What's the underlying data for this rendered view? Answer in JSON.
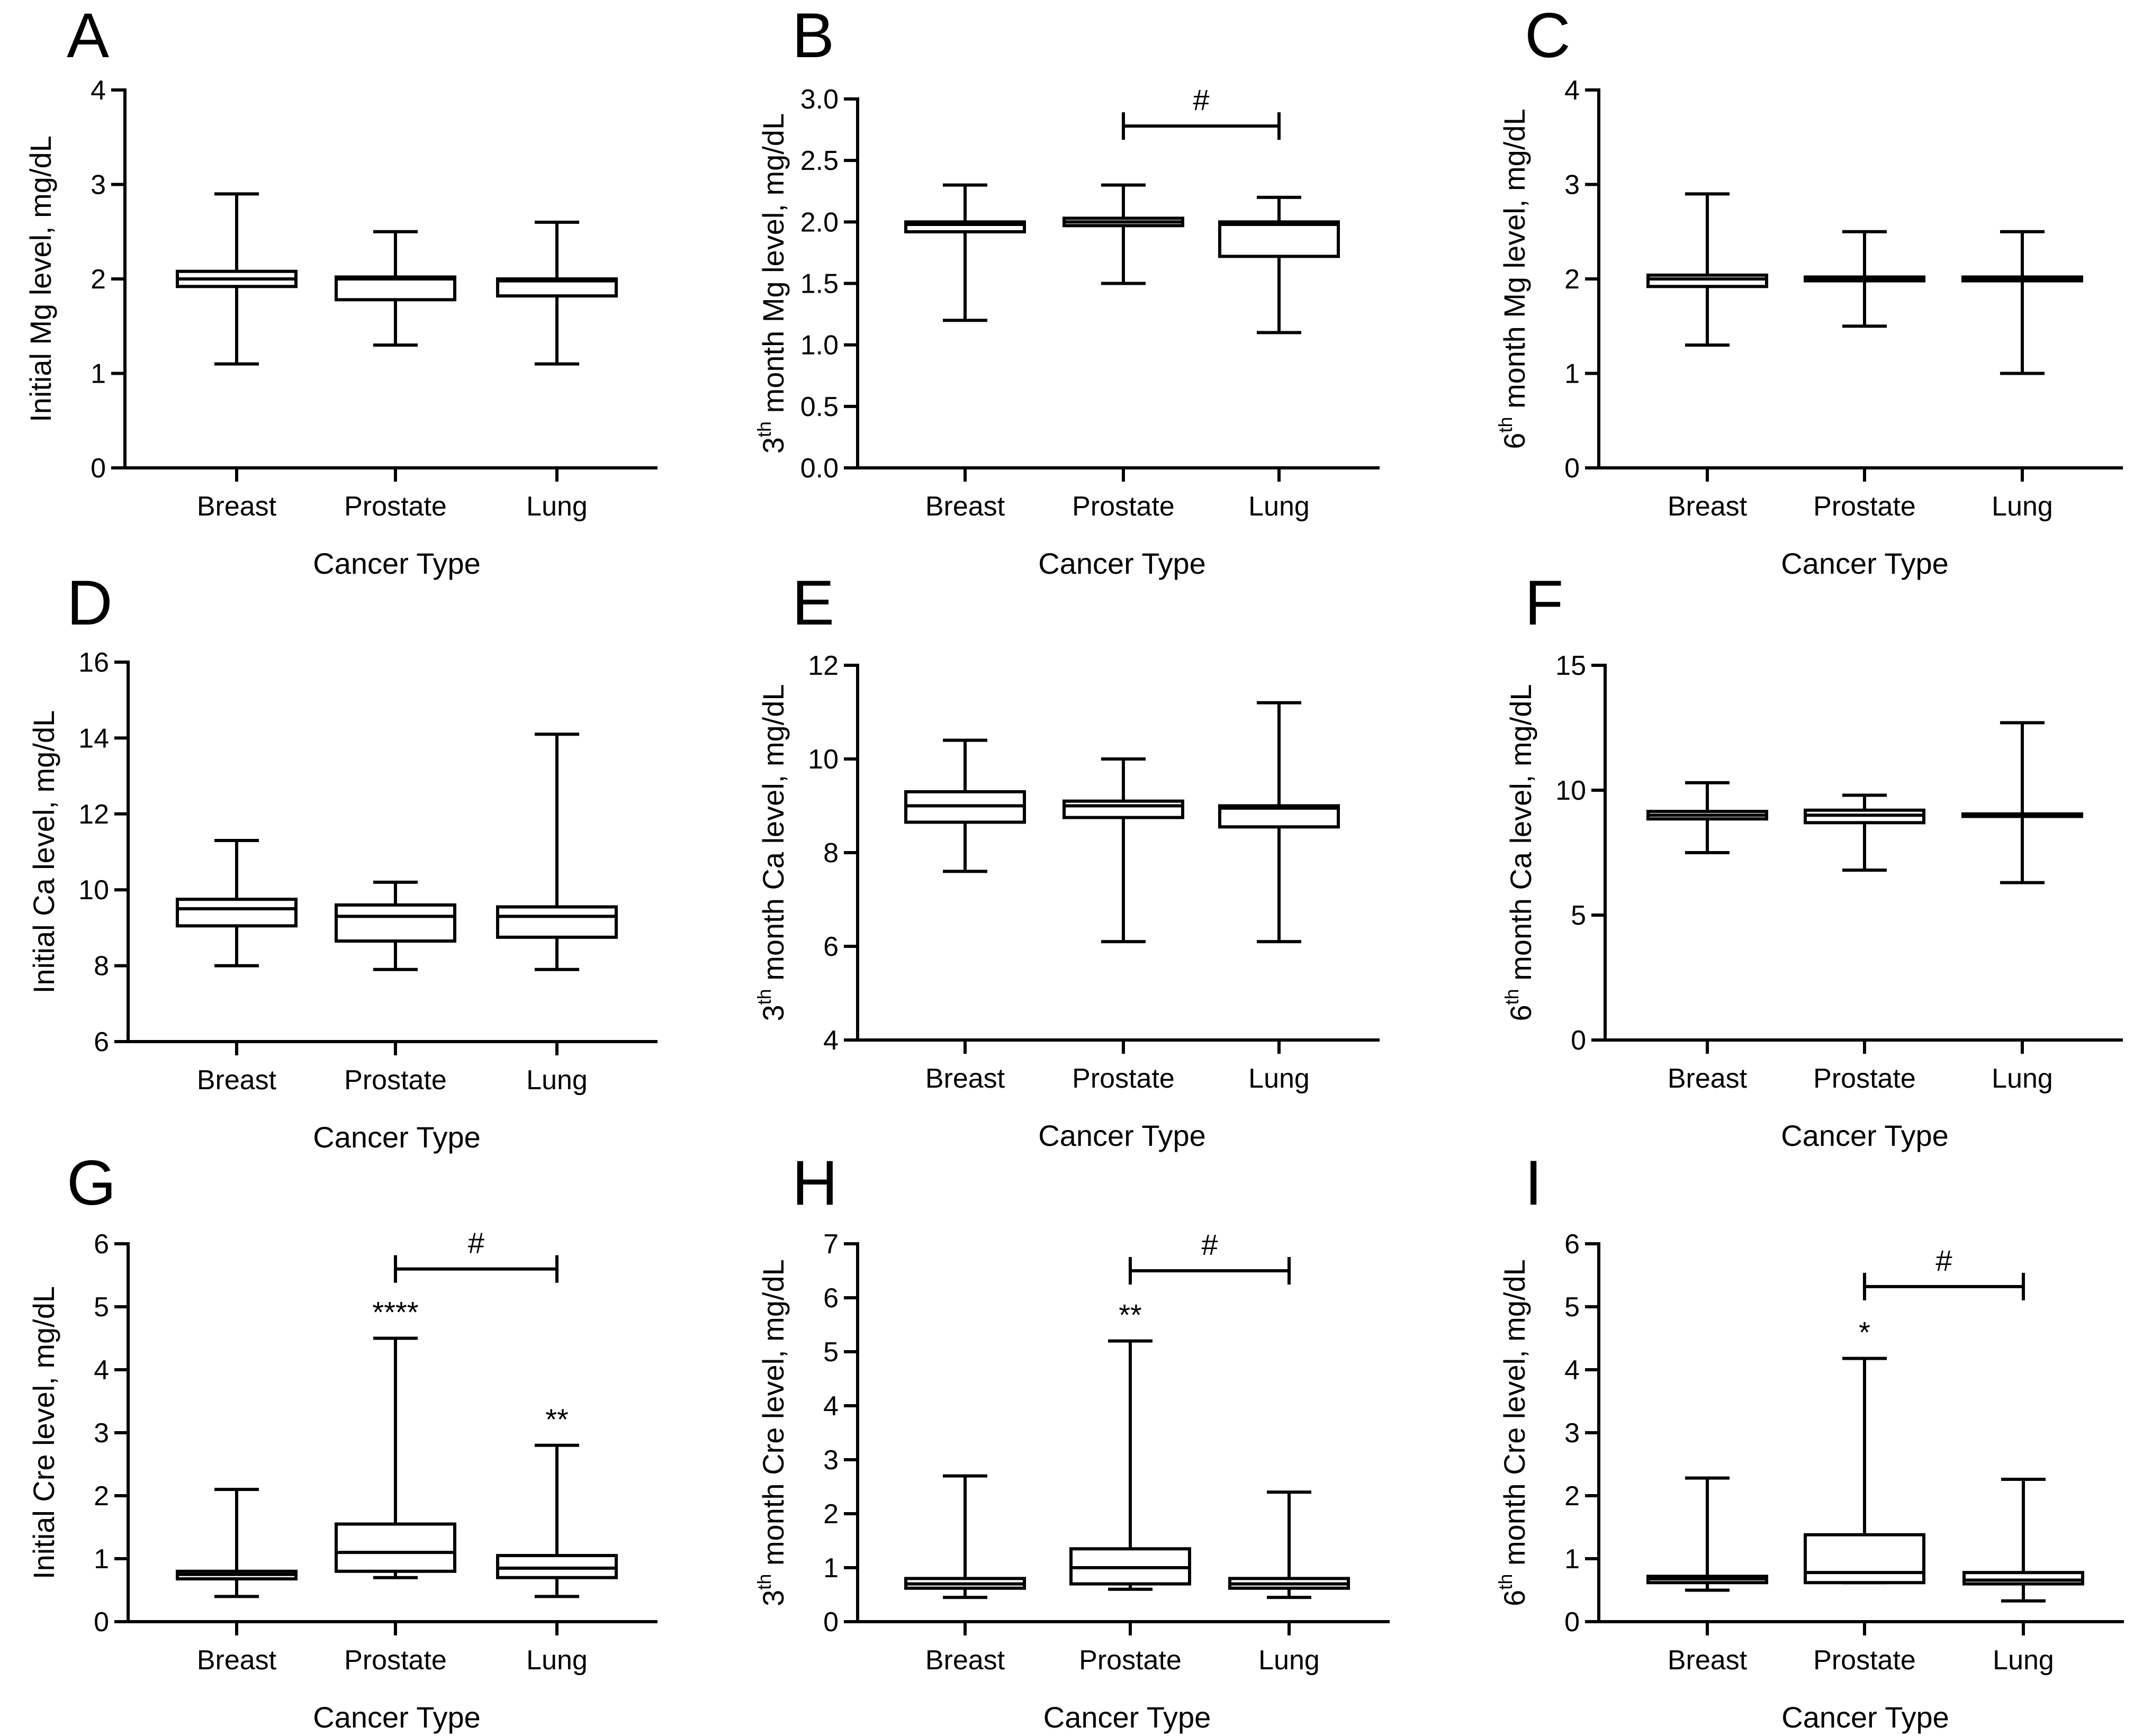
{
  "chart_data": [
    {
      "type": "box",
      "panel": "A",
      "categories": [
        "Breast",
        "Prostate",
        "Lung"
      ],
      "xlabel": "Cancer Type",
      "ylabel": "Initial Mg level, mg/dL",
      "ylim": [
        0,
        4
      ],
      "yticks": [
        0,
        1,
        2,
        3,
        4
      ],
      "ytick_labels": [
        "0",
        "1",
        "2",
        "3",
        "4"
      ],
      "boxes": [
        {
          "min": 1.1,
          "q1": 1.92,
          "median": 2.0,
          "q3": 2.08,
          "max": 2.9
        },
        {
          "min": 1.3,
          "q1": 1.78,
          "median": 2.0,
          "q3": 2.02,
          "max": 2.5
        },
        {
          "min": 1.1,
          "q1": 1.82,
          "median": 1.98,
          "q3": 2.0,
          "max": 2.6
        }
      ],
      "annotations": [],
      "brackets": []
    },
    {
      "type": "box",
      "panel": "B",
      "categories": [
        "Breast",
        "Prostate",
        "Lung"
      ],
      "xlabel": "Cancer Type",
      "ylabel_prefix": "3",
      "ylabel_sup": "th",
      "ylabel_suffix": " month Mg level, mg/dL",
      "ylim": [
        0,
        3
      ],
      "yticks": [
        0,
        0.5,
        1,
        1.5,
        2,
        2.5,
        3
      ],
      "ytick_labels": [
        "0.0",
        "0.5",
        "1.0",
        "1.5",
        "2.0",
        "2.5",
        "3.0"
      ],
      "boxes": [
        {
          "min": 1.2,
          "q1": 1.92,
          "median": 1.98,
          "q3": 2.0,
          "max": 2.3
        },
        {
          "min": 1.5,
          "q1": 1.97,
          "median": 2.0,
          "q3": 2.03,
          "max": 2.3
        },
        {
          "min": 1.1,
          "q1": 1.72,
          "median": 1.98,
          "q3": 2.0,
          "max": 2.2
        }
      ],
      "annotations": [],
      "brackets": [
        {
          "from": 1,
          "to": 2,
          "y": 2.78,
          "label": "#"
        }
      ]
    },
    {
      "type": "box",
      "panel": "C",
      "categories": [
        "Breast",
        "Prostate",
        "Lung"
      ],
      "xlabel": "Cancer Type",
      "ylabel_prefix": "6",
      "ylabel_sup": "th",
      "ylabel_suffix": " month Mg level, mg/dL",
      "ylim": [
        0,
        4
      ],
      "yticks": [
        0,
        1,
        2,
        3,
        4
      ],
      "ytick_labels": [
        "0",
        "1",
        "2",
        "3",
        "4"
      ],
      "boxes": [
        {
          "min": 1.3,
          "q1": 1.92,
          "median": 2.0,
          "q3": 2.04,
          "max": 2.9
        },
        {
          "min": 1.5,
          "q1": 1.98,
          "median": 2.0,
          "q3": 2.02,
          "max": 2.5
        },
        {
          "min": 1.0,
          "q1": 1.98,
          "median": 2.0,
          "q3": 2.02,
          "max": 2.5
        }
      ],
      "annotations": [],
      "brackets": []
    },
    {
      "type": "box",
      "panel": "D",
      "categories": [
        "Breast",
        "Prostate",
        "Lung"
      ],
      "xlabel": "Cancer Type",
      "ylabel": "Initial Ca level, mg/dL",
      "ylim": [
        6,
        16
      ],
      "yticks": [
        6,
        8,
        10,
        12,
        14,
        16
      ],
      "ytick_labels": [
        "6",
        "8",
        "10",
        "12",
        "14",
        "16"
      ],
      "boxes": [
        {
          "min": 8.0,
          "q1": 9.05,
          "median": 9.5,
          "q3": 9.75,
          "max": 11.3
        },
        {
          "min": 7.9,
          "q1": 8.65,
          "median": 9.3,
          "q3": 9.6,
          "max": 10.2
        },
        {
          "min": 7.9,
          "q1": 8.75,
          "median": 9.3,
          "q3": 9.55,
          "max": 14.1
        }
      ],
      "annotations": [],
      "brackets": []
    },
    {
      "type": "box",
      "panel": "E",
      "categories": [
        "Breast",
        "Prostate",
        "Lung"
      ],
      "xlabel": "Cancer Type",
      "ylabel_prefix": "3",
      "ylabel_sup": "th",
      "ylabel_suffix": " month Ca level, mg/dL",
      "ylim": [
        4,
        12
      ],
      "yticks": [
        4,
        6,
        8,
        10,
        12
      ],
      "ytick_labels": [
        "4",
        "6",
        "8",
        "10",
        "12"
      ],
      "boxes": [
        {
          "min": 7.6,
          "q1": 8.65,
          "median": 9.0,
          "q3": 9.3,
          "max": 10.4
        },
        {
          "min": 6.1,
          "q1": 8.75,
          "median": 9.0,
          "q3": 9.1,
          "max": 10.0
        },
        {
          "min": 6.1,
          "q1": 8.55,
          "median": 8.95,
          "q3": 9.0,
          "max": 11.2
        }
      ],
      "annotations": [],
      "brackets": []
    },
    {
      "type": "box",
      "panel": "F",
      "categories": [
        "Breast",
        "Prostate",
        "Lung"
      ],
      "xlabel": "Cancer Type",
      "ylabel_prefix": "6",
      "ylabel_sup": "th",
      "ylabel_suffix": " month Ca level, mg/dL",
      "ylim": [
        0,
        15
      ],
      "yticks": [
        0,
        5,
        10,
        15
      ],
      "ytick_labels": [
        "0",
        "5",
        "10",
        "15"
      ],
      "boxes": [
        {
          "min": 7.5,
          "q1": 8.85,
          "median": 9.0,
          "q3": 9.15,
          "max": 10.3
        },
        {
          "min": 6.8,
          "q1": 8.7,
          "median": 9.0,
          "q3": 9.2,
          "max": 9.8
        },
        {
          "min": 6.3,
          "q1": 8.95,
          "median": 9.0,
          "q3": 9.05,
          "max": 12.7
        }
      ],
      "annotations": [],
      "brackets": []
    },
    {
      "type": "box",
      "panel": "G",
      "categories": [
        "Breast",
        "Prostate",
        "Lung"
      ],
      "xlabel": "Cancer Type",
      "ylabel": "Initial Cre level, mg/dL",
      "ylim": [
        0,
        6
      ],
      "yticks": [
        0,
        1,
        2,
        3,
        4,
        5,
        6
      ],
      "ytick_labels": [
        "0",
        "1",
        "2",
        "3",
        "4",
        "5",
        "6"
      ],
      "boxes": [
        {
          "min": 0.4,
          "q1": 0.68,
          "median": 0.75,
          "q3": 0.8,
          "max": 2.1
        },
        {
          "min": 0.7,
          "q1": 0.8,
          "median": 1.1,
          "q3": 1.55,
          "max": 4.5
        },
        {
          "min": 0.4,
          "q1": 0.7,
          "median": 0.85,
          "q3": 1.05,
          "max": 2.8
        }
      ],
      "annotations": [
        {
          "category": 1,
          "y": 4.5,
          "text": "****"
        },
        {
          "category": 2,
          "y": 2.8,
          "text": "**"
        }
      ],
      "brackets": [
        {
          "from": 1,
          "to": 2,
          "y": 5.6,
          "label": "#"
        }
      ]
    },
    {
      "type": "box",
      "panel": "H",
      "categories": [
        "Breast",
        "Prostate",
        "Lung"
      ],
      "xlabel": "Cancer Type",
      "ylabel_prefix": "3",
      "ylabel_sup": "th",
      "ylabel_suffix": " month Cre level, mg/dL",
      "ylim": [
        0,
        7
      ],
      "yticks": [
        0,
        1,
        2,
        3,
        4,
        5,
        6,
        7
      ],
      "ytick_labels": [
        "0",
        "1",
        "2",
        "3",
        "4",
        "5",
        "6",
        "7"
      ],
      "boxes": [
        {
          "min": 0.45,
          "q1": 0.62,
          "median": 0.7,
          "q3": 0.8,
          "max": 2.7
        },
        {
          "min": 0.6,
          "q1": 0.7,
          "median": 1.0,
          "q3": 1.35,
          "max": 5.2
        },
        {
          "min": 0.45,
          "q1": 0.62,
          "median": 0.7,
          "q3": 0.8,
          "max": 2.4
        }
      ],
      "annotations": [
        {
          "category": 1,
          "y": 5.2,
          "text": "**"
        }
      ],
      "brackets": [
        {
          "from": 1,
          "to": 2,
          "y": 6.5,
          "label": "#"
        }
      ]
    },
    {
      "type": "box",
      "panel": "I",
      "categories": [
        "Breast",
        "Prostate",
        "Lung"
      ],
      "xlabel": "Cancer Type",
      "ylabel_prefix": "6",
      "ylabel_sup": "th",
      "ylabel_suffix": " month Cre level, mg/dL",
      "ylim": [
        0,
        6
      ],
      "yticks": [
        0,
        1,
        2,
        3,
        4,
        5,
        6
      ],
      "ytick_labels": [
        "0",
        "1",
        "2",
        "3",
        "4",
        "5",
        "6"
      ],
      "boxes": [
        {
          "min": 0.5,
          "q1": 0.62,
          "median": 0.68,
          "q3": 0.72,
          "max": 2.28
        },
        {
          "min": 0.62,
          "q1": 0.62,
          "median": 0.78,
          "q3": 1.38,
          "max": 4.18
        },
        {
          "min": 0.33,
          "q1": 0.6,
          "median": 0.66,
          "q3": 0.78,
          "max": 2.26
        }
      ],
      "annotations": [
        {
          "category": 1,
          "y": 4.18,
          "text": "*"
        }
      ],
      "brackets": [
        {
          "from": 1,
          "to": 2,
          "y": 5.32,
          "label": "#"
        }
      ]
    }
  ]
}
